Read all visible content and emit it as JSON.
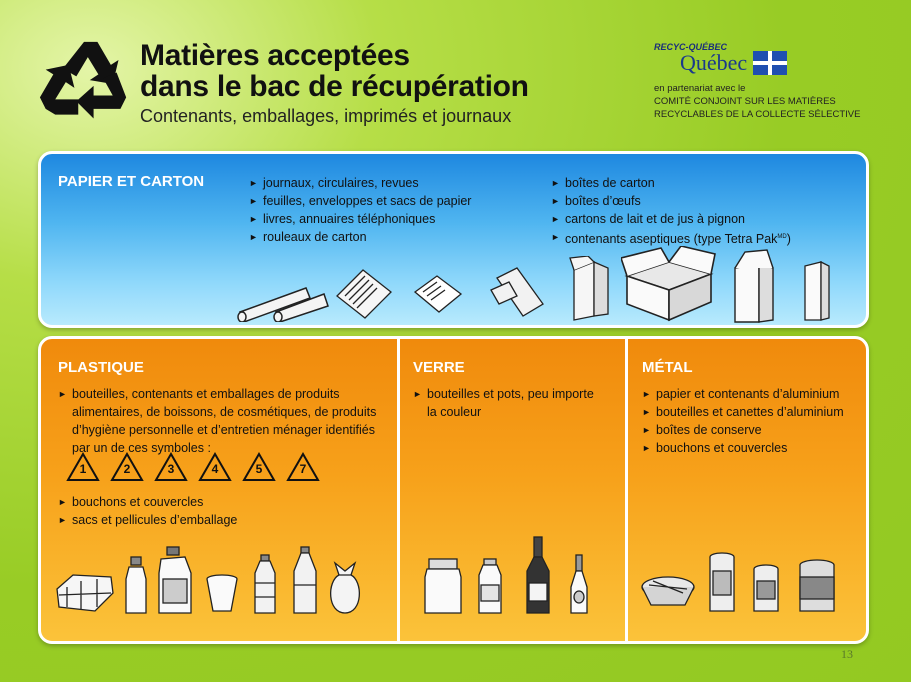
{
  "header": {
    "title_line1": "Matières acceptées",
    "title_line2": "dans le bac de récupération",
    "subtitle": "Contenants, emballages, imprimés et journaux",
    "partner_brand": "RECYC-QUÉBEC",
    "partner_name": "Québec",
    "partner_line1": "en partenariat avec le",
    "partner_line2": "COMITÉ CONJOINT SUR LES MATIÈRES",
    "partner_line3": "RECYCLABLES DE LA COLLECTE SÉLECTIVE"
  },
  "papier": {
    "title": "PAPIER ET CARTON",
    "col1": [
      "journaux, circulaires, revues",
      "feuilles, enveloppes et sacs de papier",
      "livres, annuaires téléphoniques",
      "rouleaux de carton"
    ],
    "col2": [
      "boîtes de carton",
      "boîtes d’œufs",
      "cartons de lait et de jus à pignon",
      "contenants aseptiques (type Tetra Pak"
    ],
    "md_mark": "MD",
    "close_paren": ")"
  },
  "plastique": {
    "title": "PLASTIQUE",
    "item1": "bouteilles, contenants et emballages de produits alimentaires, de boissons, de cosmétiques, de produits d’hygiène personnelle et d’entretien ménager identifiés par un de ces symboles :",
    "symbols": [
      "1",
      "2",
      "3",
      "4",
      "5",
      "7"
    ],
    "items": [
      "bouchons et couvercles",
      "sacs et pellicules d’emballage"
    ]
  },
  "verre": {
    "title": "VERRE",
    "items": [
      "bouteilles et pots, peu importe la couleur"
    ]
  },
  "metal": {
    "title": "MÉTAL",
    "items": [
      "papier et contenants d’aluminium",
      "bouteilles et canettes d’aluminium",
      "boîtes de conserve",
      "bouchons et couvercles"
    ]
  },
  "page_number": "13",
  "colors": {
    "green_bg": "#98cc25",
    "blue_panel": "#2a95e6",
    "orange_panel": "#f7a11a"
  },
  "icons": [
    "recycling-logo",
    "quebec-flag",
    "recycling-symbol"
  ]
}
